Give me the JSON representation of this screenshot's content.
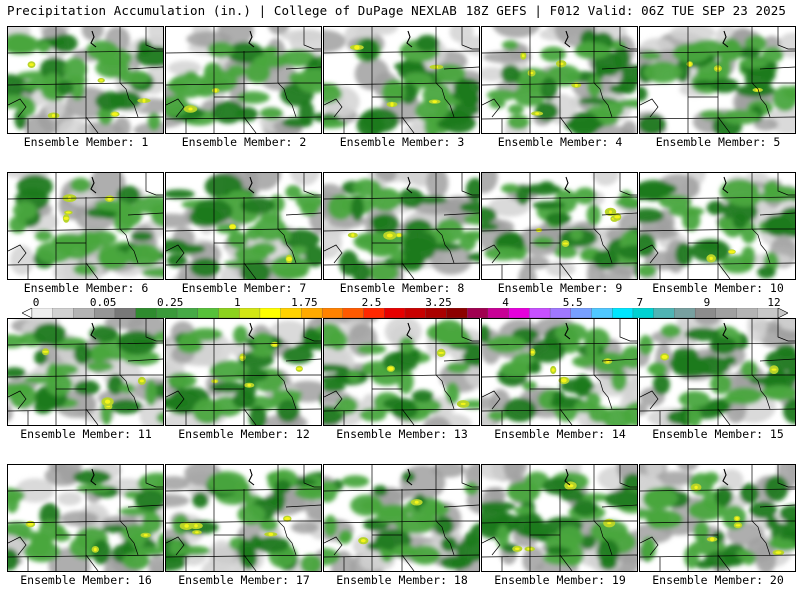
{
  "header": {
    "title_left": "Precipitation Accumulation (in.) | College of DuPage NEXLAB",
    "title_right": "18Z GEFS | F012 Valid: 06Z TUE SEP 23 2025"
  },
  "colors": {
    "trace_gray": "#d4d4d4",
    "light_gray": "#a0a0a0",
    "green_light": "#4aa63e",
    "green_dark": "#1f7a1f",
    "yellow_green": "#b8d42a",
    "yellow": "#f5f51a",
    "boundary": "#000000"
  },
  "members": [
    {
      "label": "Ensemble Member: 1"
    },
    {
      "label": "Ensemble Member: 2"
    },
    {
      "label": "Ensemble Member: 3"
    },
    {
      "label": "Ensemble Member: 4"
    },
    {
      "label": "Ensemble Member: 5"
    },
    {
      "label": "Ensemble Member: 6"
    },
    {
      "label": "Ensemble Member: 7"
    },
    {
      "label": "Ensemble Member: 8"
    },
    {
      "label": "Ensemble Member: 9"
    },
    {
      "label": "Ensemble Member: 10"
    },
    {
      "label": "Ensemble Member: 11"
    },
    {
      "label": "Ensemble Member: 12"
    },
    {
      "label": "Ensemble Member: 13"
    },
    {
      "label": "Ensemble Member: 14"
    },
    {
      "label": "Ensemble Member: 15"
    },
    {
      "label": "Ensemble Member: 16"
    },
    {
      "label": "Ensemble Member: 17"
    },
    {
      "label": "Ensemble Member: 18"
    },
    {
      "label": "Ensemble Member: 19"
    },
    {
      "label": "Ensemble Member: 20"
    }
  ],
  "colorbar": {
    "labels": [
      "0",
      "0.05",
      "0.25",
      "1",
      "1.75",
      "2.5",
      "3.25",
      "4",
      "5.5",
      "7",
      "9",
      "12"
    ],
    "bins": [
      "#eeeeee",
      "#d2d2d2",
      "#b4b4b4",
      "#969696",
      "#787878",
      "#2e8b2e",
      "#3a9a3a",
      "#46aa46",
      "#56c13a",
      "#8cd21e",
      "#d2e614",
      "#ffff00",
      "#ffd200",
      "#ffaa00",
      "#ff8200",
      "#ff5a00",
      "#ff2800",
      "#e60000",
      "#c80000",
      "#aa0000",
      "#8c0000",
      "#a00050",
      "#c80096",
      "#e600dc",
      "#c850ff",
      "#a078ff",
      "#78a0ff",
      "#50c8ff",
      "#00e6ff",
      "#00d2d2",
      "#50b4b4",
      "#78a0a0",
      "#8c8c8c",
      "#a0a0a0",
      "#b4b4b4",
      "#c8c8c8"
    ]
  }
}
